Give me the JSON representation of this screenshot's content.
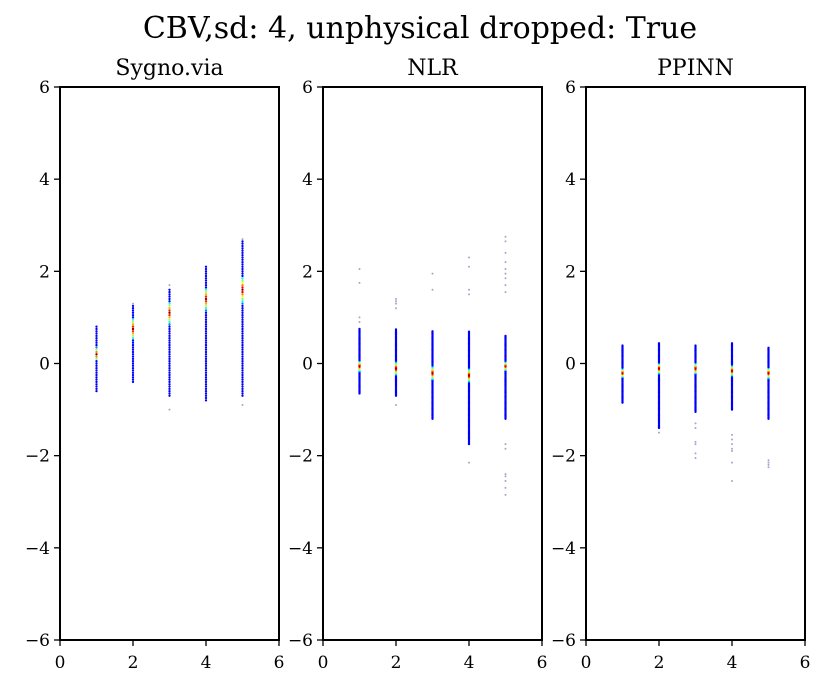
{
  "suptitle": "CBV,sd: 4, unphysical dropped: True",
  "chart_data": [
    {
      "type": "scatter",
      "title": "Sygno.via",
      "xlim": [
        0,
        6
      ],
      "ylim": [
        -6,
        6
      ],
      "xticks": [
        0,
        2,
        4,
        6
      ],
      "yticks": [
        -6,
        -4,
        -2,
        0,
        2,
        4,
        6
      ],
      "xtick_labels": [
        "0",
        "2",
        "4",
        "6"
      ],
      "ytick_labels": [
        "−6",
        "−4",
        "−2",
        "0",
        "2",
        "4",
        "6"
      ],
      "grid": false,
      "colormap": "jet (density)",
      "columns": [
        {
          "x": 1,
          "y_min": -0.6,
          "y_max": 0.8,
          "spacing": 0.05,
          "dense_center": 0.2,
          "dense_halfwidth": 0.15,
          "outliers": []
        },
        {
          "x": 2,
          "y_min": -0.4,
          "y_max": 1.25,
          "spacing": 0.05,
          "dense_center": 0.75,
          "dense_halfwidth": 0.25,
          "outliers": [
            1.3
          ]
        },
        {
          "x": 3,
          "y_min": -0.7,
          "y_max": 1.6,
          "spacing": 0.05,
          "dense_center": 1.1,
          "dense_halfwidth": 0.25,
          "outliers": [
            -1.0,
            1.7
          ]
        },
        {
          "x": 4,
          "y_min": -0.8,
          "y_max": 2.1,
          "spacing": 0.05,
          "dense_center": 1.4,
          "dense_halfwidth": 0.25,
          "outliers": []
        },
        {
          "x": 5,
          "y_min": -0.7,
          "y_max": 2.65,
          "spacing": 0.05,
          "dense_center": 1.6,
          "dense_halfwidth": 0.3,
          "outliers": [
            -0.9,
            2.7
          ]
        }
      ]
    },
    {
      "type": "scatter",
      "title": "NLR",
      "xlim": [
        0,
        6
      ],
      "ylim": [
        -6,
        6
      ],
      "xticks": [
        0,
        2,
        4,
        6
      ],
      "yticks": [
        -6,
        -4,
        -2,
        0,
        2,
        4,
        6
      ],
      "xtick_labels": [
        "0",
        "2",
        "4",
        "6"
      ],
      "ytick_labels": [
        "−6",
        "−4",
        "−2",
        "0",
        "2",
        "4",
        "6"
      ],
      "grid": false,
      "colormap": "jet (density)",
      "columns": [
        {
          "x": 1,
          "y_min": -0.65,
          "y_max": 0.75,
          "spacing": 0.02,
          "dense_center": -0.05,
          "dense_halfwidth": 0.12,
          "outliers": [
            0.9,
            1.0,
            1.75,
            2.05
          ]
        },
        {
          "x": 2,
          "y_min": -0.7,
          "y_max": 0.75,
          "spacing": 0.02,
          "dense_center": -0.1,
          "dense_halfwidth": 0.15,
          "outliers": [
            -0.9,
            1.2,
            1.3,
            1.35,
            1.4
          ]
        },
        {
          "x": 3,
          "y_min": -1.2,
          "y_max": 0.7,
          "spacing": 0.02,
          "dense_center": -0.2,
          "dense_halfwidth": 0.15,
          "outliers": [
            1.6,
            1.95
          ]
        },
        {
          "x": 4,
          "y_min": -1.75,
          "y_max": 0.7,
          "spacing": 0.02,
          "dense_center": -0.25,
          "dense_halfwidth": 0.15,
          "outliers": [
            -2.15,
            1.5,
            1.6,
            2.1,
            2.3
          ]
        },
        {
          "x": 5,
          "y_min": -1.2,
          "y_max": 0.6,
          "spacing": 0.02,
          "dense_center": -0.05,
          "dense_halfwidth": 0.1,
          "outliers": [
            -1.75,
            -1.85,
            -2.4,
            -2.45,
            -2.55,
            -2.7,
            -2.85,
            1.55,
            1.7,
            1.85,
            1.95,
            2.05,
            2.2,
            2.4,
            2.65,
            2.75
          ]
        }
      ]
    },
    {
      "type": "scatter",
      "title": "PPINN",
      "xlim": [
        0,
        6
      ],
      "ylim": [
        -6,
        6
      ],
      "xticks": [
        0,
        2,
        4,
        6
      ],
      "yticks": [
        -6,
        -4,
        -2,
        0,
        2,
        4,
        6
      ],
      "xtick_labels": [
        "0",
        "2",
        "4",
        "6"
      ],
      "ytick_labels": [
        "−6",
        "−4",
        "−2",
        "0",
        "2",
        "4",
        "6"
      ],
      "grid": false,
      "colormap": "jet (density)",
      "columns": [
        {
          "x": 1,
          "y_min": -0.85,
          "y_max": 0.4,
          "spacing": 0.02,
          "dense_center": -0.2,
          "dense_halfwidth": 0.1,
          "outliers": []
        },
        {
          "x": 2,
          "y_min": -1.4,
          "y_max": 0.45,
          "spacing": 0.02,
          "dense_center": -0.1,
          "dense_halfwidth": 0.12,
          "outliers": [
            -1.5
          ]
        },
        {
          "x": 3,
          "y_min": -1.05,
          "y_max": 0.4,
          "spacing": 0.02,
          "dense_center": -0.1,
          "dense_halfwidth": 0.12,
          "outliers": [
            -1.3,
            -1.4,
            -1.7,
            -1.75,
            -1.95,
            -2.05
          ]
        },
        {
          "x": 4,
          "y_min": -1.0,
          "y_max": 0.45,
          "spacing": 0.02,
          "dense_center": -0.15,
          "dense_halfwidth": 0.12,
          "outliers": [
            -1.55,
            -1.65,
            -1.75,
            -1.85,
            -1.9,
            -2.15,
            -2.55
          ]
        },
        {
          "x": 5,
          "y_min": -1.2,
          "y_max": 0.35,
          "spacing": 0.02,
          "dense_center": -0.2,
          "dense_halfwidth": 0.12,
          "outliers": [
            -2.1,
            -2.15,
            -2.2,
            -2.25
          ]
        }
      ]
    }
  ]
}
